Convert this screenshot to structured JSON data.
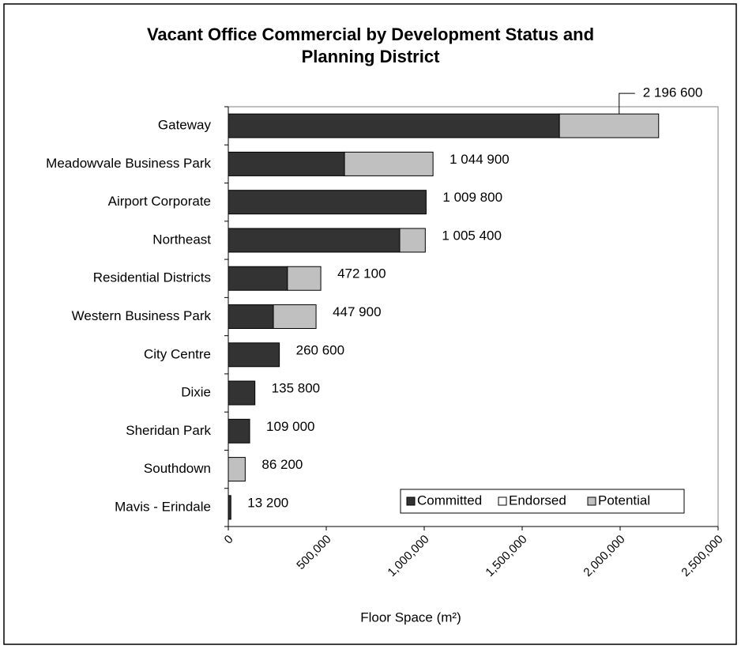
{
  "chart_data": {
    "type": "stacked-barh",
    "title": [
      "Vacant Office Commercial by Development Status and",
      "Planning District"
    ],
    "categories": [
      "Gateway",
      "Meadowvale Business Park",
      "Airport Corporate",
      "Northeast",
      "Residential Districts",
      "Western Business Park",
      "City Centre",
      "Dixie",
      "Sheridan Park",
      "Southdown",
      "Mavis - Erindale"
    ],
    "series": [
      {
        "name": "Committed",
        "color": "#333333",
        "values": [
          1690000,
          593000,
          1009800,
          875000,
          302000,
          230000,
          260600,
          135800,
          109000,
          0,
          13200
        ]
      },
      {
        "name": "Endorsed",
        "color": "#ffffff",
        "values": [
          0,
          0,
          0,
          0,
          0,
          0,
          0,
          0,
          0,
          0,
          0
        ]
      },
      {
        "name": "Potential",
        "color": "#c0c0c0",
        "values": [
          506600,
          451900,
          0,
          130400,
          170100,
          217900,
          0,
          0,
          0,
          86200,
          0
        ]
      }
    ],
    "totals": [
      2196600,
      1044900,
      1009800,
      1005400,
      472100,
      447900,
      260600,
      135800,
      109000,
      86200,
      13200
    ],
    "total_labels": [
      "2 196 600",
      "1 044 900",
      "1 009 800",
      "1 005 400",
      "472 100",
      "447 900",
      "260 600",
      "135 800",
      "109 000",
      "86 200",
      "13 200"
    ],
    "xlabel": "Floor Space (m²)",
    "xlim": [
      0,
      2500000
    ],
    "xticks": [
      0,
      {
        "value": 500000,
        "label": "500,000"
      },
      {
        "value": 1000000,
        "label": "1,000,000"
      },
      {
        "value": 1500000,
        "label": "1,500,000"
      },
      {
        "value": 2000000,
        "label": "2,000,000"
      },
      {
        "value": 2500000,
        "label": "2,500,000"
      }
    ],
    "grid": false,
    "legend": "lower right"
  }
}
